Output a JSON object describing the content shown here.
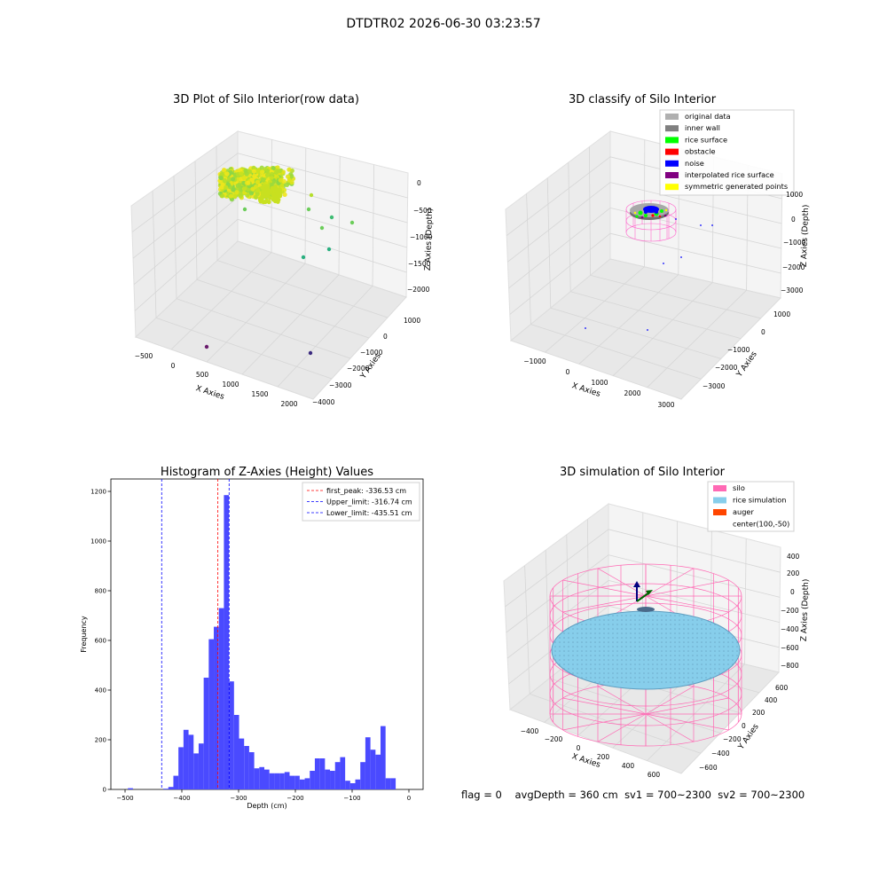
{
  "figure": {
    "suptitle": "DTDTR02 2026-06-30 03:23:57",
    "footer": {
      "flag": "flag = 0",
      "avg_depth": "avgDepth = 360 cm",
      "sv1": "sv1 = 700~2300",
      "sv2": "sv2 = 700~2300"
    }
  },
  "chart_data": [
    {
      "type": "scatter",
      "projection": "3d",
      "title": "3D Plot of Silo Interior(row data)",
      "xlabel": "X Axies",
      "ylabel": "Y Axies",
      "zlabel": "Z Axies (Depth)",
      "x_ticks": [
        "−500",
        "0",
        "500",
        "1000",
        "1500",
        "2000"
      ],
      "y_ticks": [
        "1000",
        "0",
        "−1000",
        "−2000",
        "−3000",
        "−4000"
      ],
      "z_ticks": [
        "0",
        "−500",
        "−1000",
        "−1500",
        "−2000"
      ],
      "xlim": [
        -600,
        2100
      ],
      "ylim": [
        -4000,
        1500
      ],
      "zlim": [
        -2300,
        100
      ],
      "colormap": "viridis",
      "points_note": "dense cluster near surface z≈-300, sparse outliers down to z≈-2300"
    },
    {
      "type": "scatter",
      "projection": "3d",
      "title": "3D classify of Silo Interior",
      "xlabel": "X Axies",
      "ylabel": "Y Axies",
      "zlabel": "Z Axies (Depth)",
      "x_ticks": [
        "−1000",
        "0",
        "1000",
        "2000",
        "3000"
      ],
      "y_ticks": [
        "1000",
        "0",
        "−1000",
        "−2000",
        "−3000"
      ],
      "z_ticks": [
        "1000",
        "0",
        "−1000",
        "−2000",
        "−3000"
      ],
      "legend_position": "top-right",
      "legend": [
        {
          "label": "original data",
          "color": "#b0b0b0"
        },
        {
          "label": "inner wall",
          "color": "#808080"
        },
        {
          "label": "rice surface",
          "color": "#00ff00"
        },
        {
          "label": "obstacle",
          "color": "#ff0000"
        },
        {
          "label": "noise",
          "color": "#0000ff"
        },
        {
          "label": "interpolated rice surface",
          "color": "#800080"
        },
        {
          "label": "symmetric generated points",
          "color": "#ffff00"
        }
      ]
    },
    {
      "type": "bar",
      "title": "Histogram of Z-Axies (Height) Values",
      "xlabel": "Depth (cm)",
      "ylabel": "Frequency",
      "xlim": [
        -525,
        25
      ],
      "ylim": [
        0,
        1250
      ],
      "x_ticks": [
        -500,
        -400,
        -300,
        -200,
        -100,
        0
      ],
      "y_ticks": [
        0,
        200,
        400,
        600,
        800,
        1000,
        1200
      ],
      "bar_color": "#4a4aff",
      "bin_width": 8.9,
      "bin_start": -495,
      "values": [
        5,
        0,
        0,
        0,
        0,
        0,
        0,
        3,
        10,
        55,
        170,
        240,
        220,
        145,
        185,
        450,
        605,
        655,
        730,
        1185,
        435,
        300,
        205,
        175,
        150,
        85,
        90,
        80,
        65,
        65,
        65,
        70,
        55,
        55,
        40,
        45,
        75,
        125,
        125,
        80,
        75,
        110,
        130,
        35,
        25,
        40,
        110,
        210,
        160,
        140,
        255,
        45,
        45
      ],
      "legend_position": "top-right",
      "lines": [
        {
          "label": "first_peak: -336.53 cm",
          "x": -336.53,
          "color": "#ff0000"
        },
        {
          "label": "Upper_limit: -316.74 cm",
          "x": -316.74,
          "color": "#0000ff"
        },
        {
          "label": "Lower_limit: -435.51 cm",
          "x": -435.51,
          "color": "#0000ff"
        }
      ]
    },
    {
      "type": "scatter",
      "projection": "3d",
      "title": "3D simulation of Silo Interior",
      "xlabel": "X Axies",
      "ylabel": "Y Axies",
      "zlabel": "Z Axies (Depth)",
      "x_ticks": [
        "−400",
        "−200",
        "0",
        "200",
        "400",
        "600"
      ],
      "y_ticks": [
        "600",
        "400",
        "200",
        "0",
        "−200",
        "−400",
        "−600"
      ],
      "z_ticks": [
        "400",
        "200",
        "0",
        "−200",
        "−400",
        "−600",
        "−800"
      ],
      "legend_position": "top-right",
      "legend": [
        {
          "label": "silo",
          "color": "#ff69b4"
        },
        {
          "label": "rice simulation",
          "color": "#87ceeb"
        },
        {
          "label": "auger",
          "color": "#ff4500"
        },
        {
          "label": "center(100,-50)",
          "color": ""
        }
      ]
    }
  ]
}
